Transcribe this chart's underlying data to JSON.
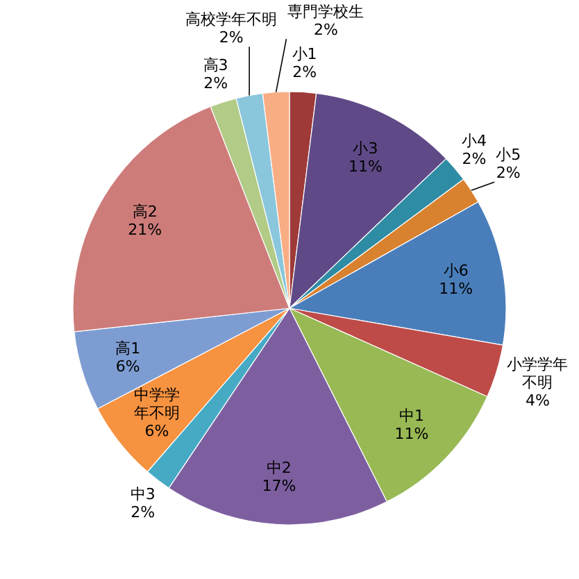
{
  "chart_data": {
    "type": "pie",
    "categories": [
      "小1",
      "小3",
      "小4",
      "小5",
      "小6",
      "小学学年不明",
      "中1",
      "中2",
      "中3",
      "中学学年不明",
      "高1",
      "高2",
      "高3",
      "高校学年不明",
      "専門学校生"
    ],
    "values": [
      2,
      11,
      2,
      2,
      11,
      4,
      11,
      17,
      2,
      6,
      6,
      21,
      2,
      2,
      2
    ],
    "value_labels": [
      "2%",
      "11%",
      "2%",
      "2%",
      "11%",
      "4%",
      "11%",
      "17%",
      "2%",
      "6%",
      "6%",
      "21%",
      "2%",
      "2%",
      "2%"
    ],
    "colors": [
      "#9e3b38",
      "#5f4a87",
      "#2e8ca4",
      "#d8812f",
      "#4a7ebb",
      "#be4b48",
      "#98b954",
      "#7d5fa0",
      "#46aac5",
      "#f69240",
      "#7d9dd2",
      "#cd7c7a",
      "#b2cb87",
      "#8ac6dc",
      "#f9ad83"
    ]
  }
}
